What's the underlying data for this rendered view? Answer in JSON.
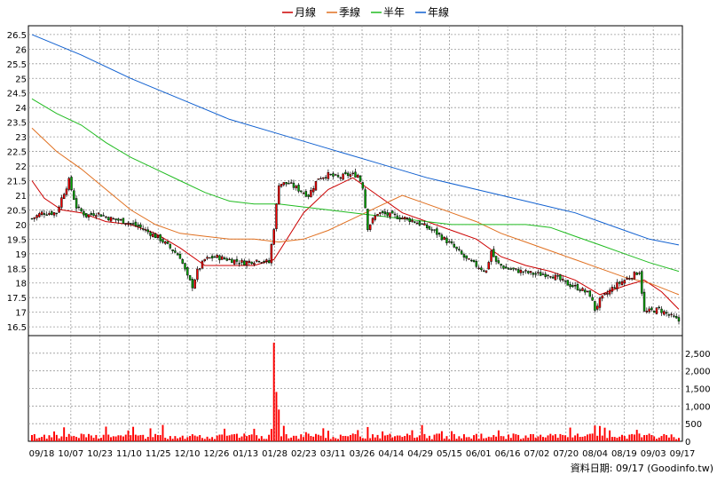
{
  "legend": {
    "items": [
      {
        "label": "月線",
        "color": "#cc0000"
      },
      {
        "label": "季線",
        "color": "#e07020"
      },
      {
        "label": "半年",
        "color": "#20bb20"
      },
      {
        "label": "年線",
        "color": "#1060d0"
      }
    ]
  },
  "footer": {
    "source": "資料日期: 09/17  (Goodinfo.tw)"
  },
  "chart_data": [
    {
      "type": "line",
      "title": "",
      "grid": true,
      "legend_position": "top-center",
      "ylim": [
        16.2,
        26.8
      ],
      "y_ticks": [
        "16.5",
        "17",
        "17.5",
        "18",
        "18.5",
        "19",
        "19.5",
        "20",
        "20.5",
        "21",
        "21.5",
        "22",
        "22.5",
        "23",
        "23.5",
        "24",
        "24.5",
        "25",
        "25.5",
        "26",
        "26.5"
      ],
      "x_ticks": [
        "09/18",
        "10/07",
        "10/23",
        "11/10",
        "11/25",
        "12/10",
        "12/26",
        "01/13",
        "01/28",
        "02/23",
        "03/11",
        "03/26",
        "04/14",
        "04/29",
        "05/15",
        "06/01",
        "06/16",
        "07/02",
        "07/20",
        "08/04",
        "08/19",
        "09/03",
        "09/17"
      ],
      "candles": {
        "description": "Daily OHLC candlesticks; red = close above open, green = close below open",
        "up_color": "#ff0000",
        "down_color": "#00aa00",
        "keyframes_close": [
          [
            0,
            20.2
          ],
          [
            4,
            20.4
          ],
          [
            10,
            20.4
          ],
          [
            12,
            20.9
          ],
          [
            15,
            21.5
          ],
          [
            18,
            20.6
          ],
          [
            22,
            20.3
          ],
          [
            26,
            20.4
          ],
          [
            32,
            20.2
          ],
          [
            38,
            20.1
          ],
          [
            44,
            19.9
          ],
          [
            48,
            19.7
          ],
          [
            52,
            19.5
          ],
          [
            56,
            19.2
          ],
          [
            60,
            18.9
          ],
          [
            63,
            18.2
          ],
          [
            65,
            17.9
          ],
          [
            67,
            18.4
          ],
          [
            70,
            18.8
          ],
          [
            74,
            18.9
          ],
          [
            80,
            18.8
          ],
          [
            86,
            18.7
          ],
          [
            92,
            18.8
          ],
          [
            96,
            18.7
          ],
          [
            98,
            19.9
          ],
          [
            100,
            21.4
          ],
          [
            104,
            21.4
          ],
          [
            108,
            21.2
          ],
          [
            112,
            21.0
          ],
          [
            116,
            21.6
          ],
          [
            120,
            21.7
          ],
          [
            124,
            21.6
          ],
          [
            128,
            21.7
          ],
          [
            132,
            21.7
          ],
          [
            134,
            21.3
          ],
          [
            136,
            19.9
          ],
          [
            140,
            20.4
          ],
          [
            146,
            20.3
          ],
          [
            152,
            20.2
          ],
          [
            158,
            20.0
          ],
          [
            164,
            19.7
          ],
          [
            170,
            19.3
          ],
          [
            176,
            18.8
          ],
          [
            180,
            18.6
          ],
          [
            184,
            18.4
          ],
          [
            186,
            19.1
          ],
          [
            188,
            18.7
          ],
          [
            192,
            18.5
          ],
          [
            198,
            18.4
          ],
          [
            204,
            18.3
          ],
          [
            210,
            18.3
          ],
          [
            216,
            18.0
          ],
          [
            222,
            17.8
          ],
          [
            226,
            17.6
          ],
          [
            228,
            17.1
          ],
          [
            230,
            17.4
          ],
          [
            236,
            17.9
          ],
          [
            242,
            18.2
          ],
          [
            246,
            18.4
          ],
          [
            248,
            17.0
          ],
          [
            254,
            17.1
          ],
          [
            258,
            16.9
          ],
          [
            262,
            16.7
          ]
        ]
      },
      "series": [
        {
          "name": "月線",
          "color": "#cc0000",
          "points": [
            [
              0,
              21.5
            ],
            [
              5,
              20.9
            ],
            [
              12,
              20.5
            ],
            [
              20,
              20.4
            ],
            [
              30,
              20.1
            ],
            [
              40,
              20.0
            ],
            [
              50,
              19.7
            ],
            [
              60,
              19.2
            ],
            [
              70,
              18.6
            ],
            [
              80,
              18.6
            ],
            [
              90,
              18.6
            ],
            [
              98,
              18.8
            ],
            [
              110,
              20.4
            ],
            [
              120,
              21.2
            ],
            [
              130,
              21.6
            ],
            [
              140,
              21.0
            ],
            [
              150,
              20.4
            ],
            [
              160,
              20.1
            ],
            [
              170,
              19.8
            ],
            [
              180,
              19.5
            ],
            [
              190,
              18.9
            ],
            [
              200,
              18.6
            ],
            [
              210,
              18.4
            ],
            [
              220,
              18.1
            ],
            [
              230,
              17.6
            ],
            [
              240,
              17.9
            ],
            [
              248,
              18.1
            ],
            [
              255,
              17.7
            ],
            [
              262,
              17.1
            ]
          ]
        },
        {
          "name": "季線",
          "color": "#e07020",
          "points": [
            [
              0,
              23.3
            ],
            [
              10,
              22.5
            ],
            [
              20,
              21.9
            ],
            [
              30,
              21.2
            ],
            [
              40,
              20.5
            ],
            [
              50,
              20.0
            ],
            [
              60,
              19.7
            ],
            [
              70,
              19.6
            ],
            [
              80,
              19.5
            ],
            [
              90,
              19.5
            ],
            [
              100,
              19.4
            ],
            [
              110,
              19.5
            ],
            [
              120,
              19.8
            ],
            [
              130,
              20.2
            ],
            [
              140,
              20.6
            ],
            [
              150,
              21.0
            ],
            [
              160,
              20.7
            ],
            [
              170,
              20.4
            ],
            [
              180,
              20.1
            ],
            [
              190,
              19.7
            ],
            [
              200,
              19.4
            ],
            [
              210,
              19.1
            ],
            [
              220,
              18.8
            ],
            [
              230,
              18.5
            ],
            [
              240,
              18.2
            ],
            [
              250,
              18.0
            ],
            [
              262,
              17.6
            ]
          ]
        },
        {
          "name": "半年",
          "color": "#20bb20",
          "points": [
            [
              0,
              24.3
            ],
            [
              10,
              23.8
            ],
            [
              20,
              23.4
            ],
            [
              30,
              22.8
            ],
            [
              40,
              22.3
            ],
            [
              50,
              21.9
            ],
            [
              60,
              21.5
            ],
            [
              70,
              21.1
            ],
            [
              80,
              20.8
            ],
            [
              90,
              20.7
            ],
            [
              100,
              20.7
            ],
            [
              110,
              20.6
            ],
            [
              120,
              20.5
            ],
            [
              130,
              20.4
            ],
            [
              140,
              20.3
            ],
            [
              150,
              20.2
            ],
            [
              160,
              20.1
            ],
            [
              170,
              20.0
            ],
            [
              180,
              20.0
            ],
            [
              190,
              20.0
            ],
            [
              200,
              20.0
            ],
            [
              210,
              19.9
            ],
            [
              220,
              19.6
            ],
            [
              230,
              19.3
            ],
            [
              240,
              19.0
            ],
            [
              250,
              18.7
            ],
            [
              262,
              18.4
            ]
          ]
        },
        {
          "name": "年線",
          "color": "#1060d0",
          "points": [
            [
              0,
              26.5
            ],
            [
              20,
              25.8
            ],
            [
              40,
              25.0
            ],
            [
              60,
              24.3
            ],
            [
              80,
              23.6
            ],
            [
              100,
              23.1
            ],
            [
              120,
              22.6
            ],
            [
              140,
              22.1
            ],
            [
              160,
              21.6
            ],
            [
              180,
              21.2
            ],
            [
              200,
              20.8
            ],
            [
              220,
              20.4
            ],
            [
              230,
              20.1
            ],
            [
              240,
              19.8
            ],
            [
              250,
              19.5
            ],
            [
              262,
              19.3
            ]
          ]
        }
      ]
    },
    {
      "type": "bar",
      "title": "",
      "ylim": [
        0,
        3000
      ],
      "y_ticks": [
        "2,500",
        "2,000",
        "1,500",
        "1,000",
        "500",
        "0"
      ],
      "bar_color": "#ff0000",
      "volume_spike": {
        "index": 98,
        "value": 2800
      },
      "secondary_spikes": [
        [
          99,
          1400
        ],
        [
          100,
          900
        ],
        [
          97,
          350
        ],
        [
          120,
          300
        ],
        [
          142,
          280
        ],
        [
          196,
          200
        ],
        [
          240,
          150
        ],
        [
          10,
          180
        ],
        [
          65,
          200
        ]
      ],
      "baseline_range": [
        60,
        220
      ]
    }
  ]
}
